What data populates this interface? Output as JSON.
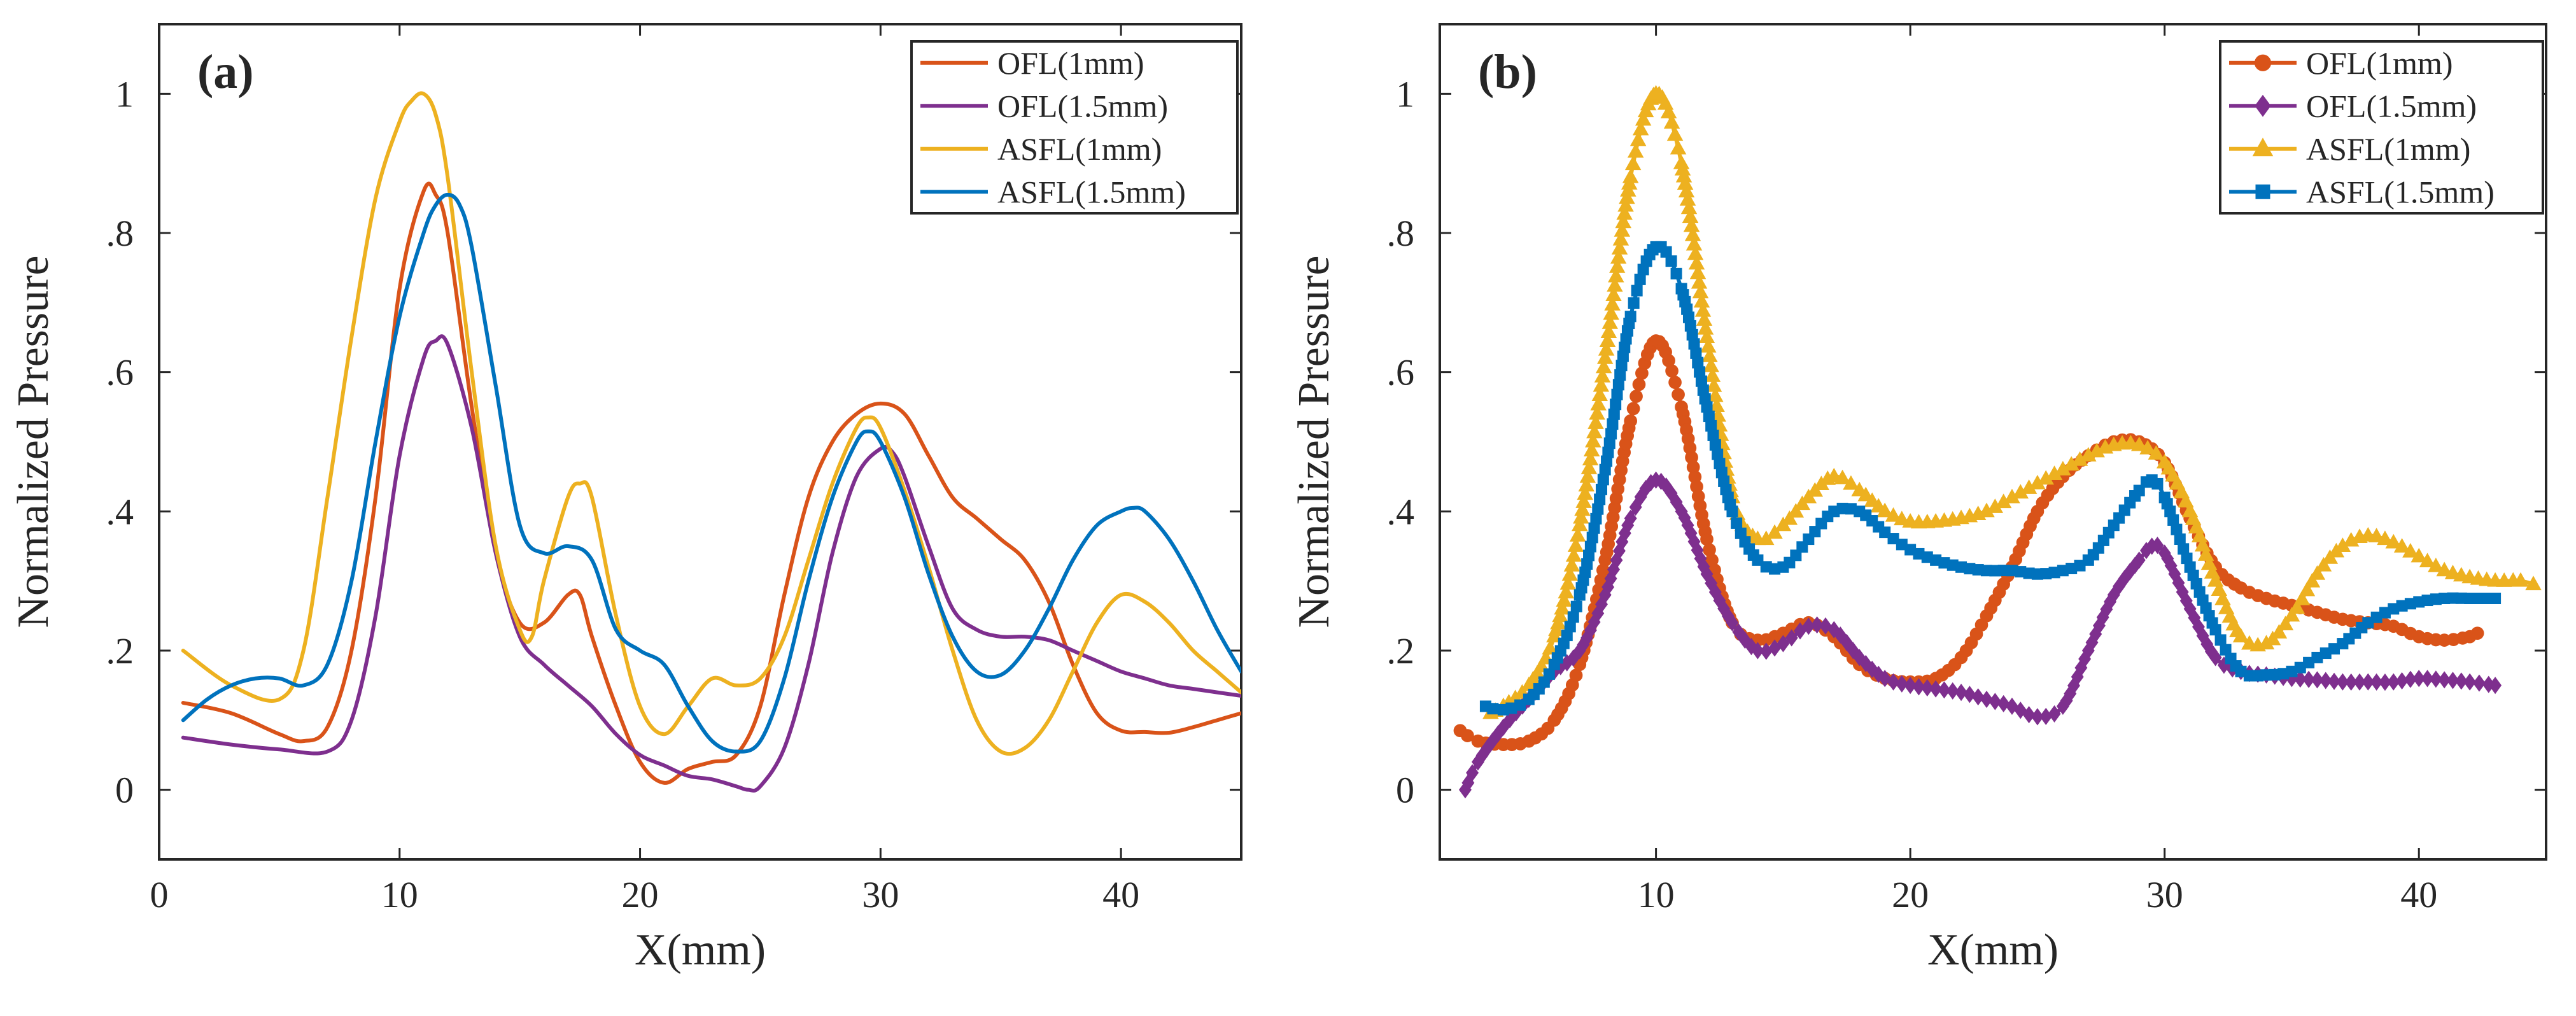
{
  "figure": {
    "description_labels": [
      "(a)",
      "(b)"
    ]
  },
  "chart_data": [
    {
      "type": "line",
      "panel_label": "(a)",
      "title": "",
      "xlabel": "X(mm)",
      "ylabel": "Normalized Pressure",
      "xlim": [
        0,
        45
      ],
      "ylim": [
        -0.1,
        1.1
      ],
      "xticks": [
        0,
        10,
        20,
        30,
        40
      ],
      "yticks": [
        0,
        0.2,
        0.4,
        0.6,
        0.8,
        1
      ],
      "grid": false,
      "legend_position": "top-right",
      "markers": false,
      "series": [
        {
          "name": "OFL(1mm)",
          "color": "#D95319",
          "x": [
            1,
            3,
            5,
            6,
            7,
            8,
            9,
            10,
            11,
            11.5,
            12,
            13,
            14,
            15,
            16,
            17,
            17.5,
            18,
            19,
            20,
            21,
            22,
            23,
            24,
            25,
            26,
            27,
            28,
            29,
            30,
            31,
            32,
            33,
            34,
            35,
            36,
            37,
            38,
            39,
            40,
            41,
            42,
            43,
            44,
            45
          ],
          "y": [
            0.125,
            0.11,
            0.08,
            0.07,
            0.09,
            0.2,
            0.42,
            0.72,
            0.86,
            0.855,
            0.8,
            0.55,
            0.34,
            0.24,
            0.24,
            0.28,
            0.28,
            0.22,
            0.12,
            0.04,
            0.01,
            0.03,
            0.04,
            0.05,
            0.12,
            0.28,
            0.42,
            0.5,
            0.54,
            0.555,
            0.54,
            0.48,
            0.42,
            0.39,
            0.36,
            0.33,
            0.27,
            0.18,
            0.11,
            0.085,
            0.083,
            0.082,
            0.09,
            0.1,
            0.11
          ]
        },
        {
          "name": "OFL(1.5mm)",
          "color": "#7E2F8E",
          "x": [
            1,
            3,
            5,
            7,
            8,
            9,
            10,
            11,
            11.5,
            12,
            13,
            14,
            15,
            16,
            17,
            18,
            19,
            20,
            21,
            22,
            23,
            24,
            24.5,
            25,
            26,
            27,
            28,
            29,
            30,
            30.5,
            31,
            32,
            33,
            34,
            35,
            36,
            37,
            38,
            39,
            40,
            41,
            42,
            43,
            44,
            45
          ],
          "y": [
            0.075,
            0.065,
            0.058,
            0.055,
            0.1,
            0.25,
            0.48,
            0.62,
            0.645,
            0.64,
            0.52,
            0.34,
            0.22,
            0.18,
            0.15,
            0.12,
            0.08,
            0.05,
            0.035,
            0.02,
            0.015,
            0.005,
            0.0,
            0.005,
            0.06,
            0.18,
            0.34,
            0.45,
            0.49,
            0.485,
            0.45,
            0.35,
            0.26,
            0.23,
            0.22,
            0.22,
            0.215,
            0.2,
            0.185,
            0.17,
            0.16,
            0.15,
            0.145,
            0.14,
            0.135
          ]
        },
        {
          "name": "ASFL(1mm)",
          "color": "#EDB120",
          "x": [
            1,
            3,
            5,
            6,
            7,
            8,
            9,
            10,
            10.5,
            11,
            11.5,
            12,
            13,
            14,
            15,
            15.5,
            16,
            17,
            17.5,
            18,
            19,
            20,
            21,
            22,
            23,
            24,
            25,
            26,
            27,
            28,
            29,
            29.5,
            30,
            31,
            32,
            33,
            34,
            35,
            36,
            37,
            38,
            39,
            40,
            41,
            42,
            43,
            44,
            45
          ],
          "y": [
            0.2,
            0.15,
            0.13,
            0.2,
            0.42,
            0.65,
            0.85,
            0.96,
            0.99,
            1.0,
            0.97,
            0.88,
            0.6,
            0.35,
            0.23,
            0.22,
            0.3,
            0.42,
            0.44,
            0.42,
            0.25,
            0.12,
            0.08,
            0.12,
            0.16,
            0.15,
            0.16,
            0.22,
            0.33,
            0.44,
            0.52,
            0.535,
            0.52,
            0.43,
            0.32,
            0.2,
            0.1,
            0.055,
            0.06,
            0.1,
            0.17,
            0.24,
            0.28,
            0.27,
            0.24,
            0.2,
            0.17,
            0.14
          ]
        },
        {
          "name": "ASFL(1.5mm)",
          "color": "#0072BD",
          "x": [
            1,
            2,
            3,
            4,
            5,
            6,
            7,
            8,
            9,
            10,
            11,
            11.5,
            12,
            12.5,
            13,
            14,
            15,
            16,
            17,
            18,
            19,
            20,
            21,
            22,
            23,
            24,
            25,
            26,
            27,
            28,
            29,
            29.5,
            30,
            31,
            32,
            33,
            34,
            35,
            36,
            37,
            38,
            39,
            40,
            40.5,
            41,
            42,
            43,
            44,
            45
          ],
          "y": [
            0.1,
            0.13,
            0.15,
            0.16,
            0.16,
            0.15,
            0.18,
            0.3,
            0.5,
            0.68,
            0.8,
            0.84,
            0.855,
            0.84,
            0.78,
            0.58,
            0.38,
            0.34,
            0.35,
            0.33,
            0.23,
            0.2,
            0.18,
            0.12,
            0.07,
            0.055,
            0.07,
            0.16,
            0.3,
            0.42,
            0.5,
            0.515,
            0.5,
            0.42,
            0.31,
            0.22,
            0.17,
            0.165,
            0.2,
            0.26,
            0.33,
            0.38,
            0.4,
            0.405,
            0.4,
            0.36,
            0.3,
            0.23,
            0.17
          ]
        }
      ]
    },
    {
      "type": "line",
      "panel_label": "(b)",
      "title": "",
      "xlabel": "X(mm)",
      "ylabel": "Normalized Pressure",
      "xlim": [
        1.5,
        45
      ],
      "ylim": [
        -0.1,
        1.1
      ],
      "xticks": [
        10,
        20,
        30,
        40
      ],
      "yticks": [
        0,
        0.2,
        0.4,
        0.6,
        0.8,
        1
      ],
      "grid": false,
      "legend_position": "top-right",
      "markers": true,
      "series": [
        {
          "name": "OFL(1mm)",
          "color": "#D95319",
          "marker": "circle",
          "x": [
            2.3,
            3,
            4,
            5,
            6,
            7,
            8,
            9,
            10,
            11,
            12,
            13,
            14,
            15,
            16,
            17,
            18,
            19,
            20,
            21,
            22,
            23,
            24,
            25,
            26,
            27,
            28,
            29,
            30,
            31,
            32,
            33,
            34,
            35,
            36,
            37,
            38,
            39,
            40,
            41,
            42,
            42.3
          ],
          "y": [
            0.085,
            0.07,
            0.065,
            0.07,
            0.1,
            0.18,
            0.33,
            0.53,
            0.645,
            0.55,
            0.36,
            0.24,
            0.215,
            0.225,
            0.24,
            0.22,
            0.18,
            0.16,
            0.155,
            0.16,
            0.19,
            0.25,
            0.32,
            0.4,
            0.45,
            0.48,
            0.5,
            0.5,
            0.47,
            0.39,
            0.32,
            0.29,
            0.275,
            0.265,
            0.255,
            0.245,
            0.24,
            0.235,
            0.22,
            0.215,
            0.22,
            0.225
          ]
        },
        {
          "name": "OFL(1.5mm)",
          "color": "#7E2F8E",
          "marker": "diamond",
          "x": [
            2.5,
            3,
            4,
            5,
            6,
            7,
            8,
            9,
            10,
            11,
            12,
            13,
            14,
            15,
            16,
            17,
            18,
            19,
            20,
            21,
            22,
            23,
            24,
            25,
            26,
            27,
            28,
            29,
            29.5,
            30,
            31,
            32,
            33,
            34,
            35,
            36,
            37,
            38,
            39,
            40,
            41,
            42,
            43
          ],
          "y": [
            0.0,
            0.04,
            0.09,
            0.13,
            0.17,
            0.2,
            0.28,
            0.39,
            0.445,
            0.4,
            0.31,
            0.24,
            0.2,
            0.21,
            0.235,
            0.23,
            0.19,
            0.16,
            0.15,
            0.145,
            0.14,
            0.13,
            0.12,
            0.105,
            0.12,
            0.2,
            0.28,
            0.33,
            0.35,
            0.34,
            0.26,
            0.19,
            0.17,
            0.165,
            0.16,
            0.158,
            0.155,
            0.155,
            0.155,
            0.16,
            0.158,
            0.155,
            0.15
          ]
        },
        {
          "name": "ASFL(1mm)",
          "color": "#EDB120",
          "marker": "triangle",
          "x": [
            3.5,
            4,
            5,
            6,
            7,
            8,
            9,
            10,
            11,
            12,
            13,
            14,
            15,
            16,
            17,
            18,
            19,
            20,
            21,
            22,
            23,
            24,
            25,
            26,
            27,
            28,
            29,
            30,
            31,
            32,
            33,
            34,
            35,
            36,
            37,
            38,
            39,
            40,
            41,
            42,
            43,
            44,
            44.5
          ],
          "y": [
            0.11,
            0.12,
            0.15,
            0.22,
            0.38,
            0.62,
            0.88,
            1.0,
            0.9,
            0.65,
            0.42,
            0.36,
            0.38,
            0.42,
            0.45,
            0.43,
            0.4,
            0.385,
            0.385,
            0.39,
            0.4,
            0.42,
            0.44,
            0.46,
            0.48,
            0.495,
            0.495,
            0.47,
            0.4,
            0.3,
            0.22,
            0.21,
            0.25,
            0.31,
            0.35,
            0.365,
            0.355,
            0.335,
            0.315,
            0.305,
            0.3,
            0.3,
            0.295
          ]
        },
        {
          "name": "ASFL(1.5mm)",
          "color": "#0072BD",
          "marker": "square",
          "x": [
            3.3,
            4,
            5,
            6,
            7,
            8,
            9,
            10,
            11,
            12,
            13,
            14,
            15,
            16,
            17,
            18,
            19,
            20,
            21,
            22,
            23,
            24,
            25,
            26,
            27,
            28,
            29,
            29.5,
            30,
            31,
            32,
            33,
            34,
            35,
            36,
            37,
            38,
            39,
            40,
            41,
            42,
            43
          ],
          "y": [
            0.12,
            0.115,
            0.13,
            0.18,
            0.28,
            0.46,
            0.68,
            0.78,
            0.72,
            0.55,
            0.4,
            0.33,
            0.32,
            0.36,
            0.4,
            0.4,
            0.37,
            0.345,
            0.33,
            0.32,
            0.315,
            0.315,
            0.31,
            0.315,
            0.33,
            0.38,
            0.43,
            0.445,
            0.42,
            0.32,
            0.23,
            0.17,
            0.165,
            0.17,
            0.19,
            0.21,
            0.24,
            0.26,
            0.27,
            0.275,
            0.275,
            0.275
          ]
        }
      ]
    }
  ]
}
